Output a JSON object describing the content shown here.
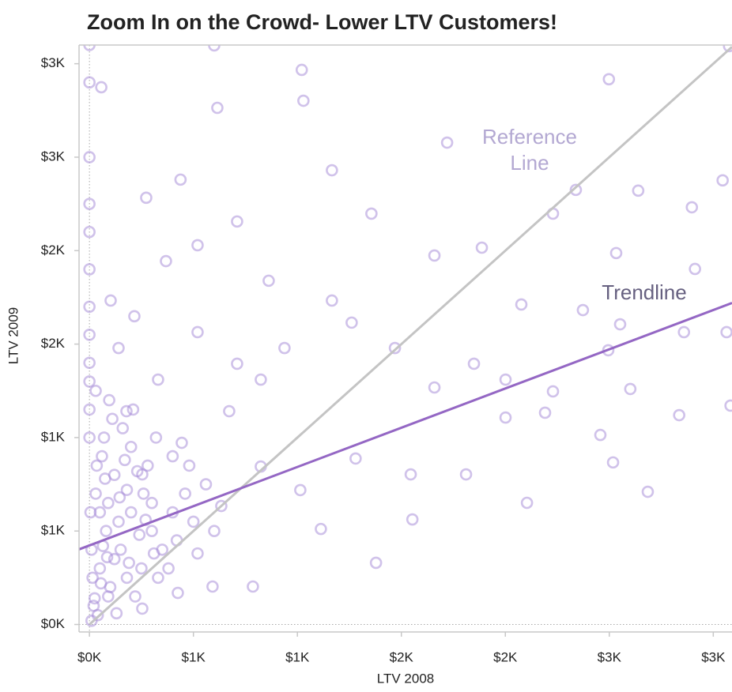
{
  "chart_data": {
    "type": "scatter",
    "title": "Zoom In on the Crowd- Lower LTV Customers!",
    "x_label": "LTV 2008",
    "y_label": "LTV 2009",
    "color": "#a286d6",
    "xlim": [
      -50,
      3090
    ],
    "ylim": [
      -40,
      3100
    ],
    "xticks": [
      {
        "value": 0,
        "label": "$0K"
      },
      {
        "value": 500,
        "label": "$1K"
      },
      {
        "value": 1000,
        "label": "$1K"
      },
      {
        "value": 1500,
        "label": "$2K"
      },
      {
        "value": 2000,
        "label": "$2K"
      },
      {
        "value": 2500,
        "label": "$3K"
      },
      {
        "value": 3000,
        "label": "$3K"
      }
    ],
    "yticks": [
      {
        "value": 0,
        "label": "$0K"
      },
      {
        "value": 500,
        "label": "$1K"
      },
      {
        "value": 1000,
        "label": "$1K"
      },
      {
        "value": 1500,
        "label": "$2K"
      },
      {
        "value": 2000,
        "label": "$2K"
      },
      {
        "value": 2500,
        "label": "$3K"
      },
      {
        "value": 3000,
        "label": "$3K"
      }
    ],
    "reference_line": {
      "x": [
        0,
        3090
      ],
      "y": [
        0,
        3090
      ],
      "color": "#c4c4c4"
    },
    "trendline": {
      "x": [
        -50,
        3090
      ],
      "y": [
        402,
        1720
      ],
      "color": "#9467c4"
    },
    "reference_label": [
      "Reference",
      "Line"
    ],
    "trendline_label": "Trendline",
    "x": [
      600,
      1021,
      57,
      1029,
      2498,
      615,
      3076,
      1720,
      1166,
      273,
      438,
      2339,
      2639,
      2897,
      3045,
      1356,
      1887,
      2229,
      1659,
      2533,
      2912,
      1261,
      2077,
      2373,
      2552,
      3064,
      1469,
      1849,
      2495,
      2859,
      2001,
      2229,
      2601,
      2836,
      3083,
      2191,
      2001,
      2457,
      2685,
      2518,
      2104,
      1811,
      1553,
      1378,
      1113,
      786,
      592,
      425,
      254,
      1659,
      1280,
      1014,
      1545,
      710,
      520,
      824,
      862,
      710,
      368,
      520,
      1166,
      938,
      672,
      824,
      634,
      520,
      444,
      254,
      178,
      330,
      140,
      102,
      216,
      0,
      0,
      0,
      0,
      0,
      0,
      0,
      0,
      0,
      0,
      0,
      0,
      20,
      50,
      80,
      30,
      100,
      150,
      200,
      120,
      60,
      250,
      300,
      180,
      40,
      10,
      90,
      220,
      140,
      260,
      350,
      400,
      330,
      70,
      110,
      200,
      280,
      160,
      30,
      50,
      120,
      180,
      240,
      300,
      380,
      420,
      460,
      500,
      90,
      15,
      65,
      130,
      190,
      35,
      75,
      95,
      210,
      320,
      400,
      480,
      560,
      600,
      10,
      25,
      55,
      85,
      5,
      145,
      170,
      230,
      270,
      310
    ],
    "values": [
      3098,
      2967,
      2874,
      2802,
      2917,
      2764,
      3094,
      2578,
      2430,
      2283,
      2380,
      2325,
      2321,
      2232,
      2376,
      2198,
      2016,
      2198,
      1974,
      1987,
      1902,
      1615,
      1712,
      1682,
      1606,
      1564,
      1479,
      1395,
      1467,
      1564,
      1310,
      1247,
      1260,
      1120,
      1171,
      1133,
      1107,
      1014,
      710,
      867,
      651,
      803,
      562,
      330,
      511,
      203,
      203,
      169,
      85,
      1268,
      888,
      719,
      803,
      1395,
      1564,
      1310,
      1839,
      2156,
      1944,
      2029,
      1733,
      1479,
      1141,
      845,
      634,
      380,
      972,
      803,
      1141,
      1310,
      1479,
      1733,
      1649,
      3100,
      2900,
      2500,
      2250,
      2100,
      1900,
      1700,
      1550,
      1400,
      1300,
      1150,
      1000,
      100,
      300,
      500,
      700,
      200,
      400,
      600,
      800,
      900,
      300,
      500,
      250,
      50,
      400,
      650,
      150,
      550,
      700,
      400,
      600,
      250,
      1000,
      1100,
      950,
      850,
      1050,
      1250,
      600,
      350,
      720,
      480,
      650,
      300,
      450,
      700,
      550,
      150,
      250,
      420,
      60,
      330,
      850,
      780,
      1200,
      1150,
      1000,
      900,
      850,
      750,
      500,
      20,
      140,
      220,
      360,
      600,
      680,
      880,
      820,
      560,
      380
    ]
  }
}
